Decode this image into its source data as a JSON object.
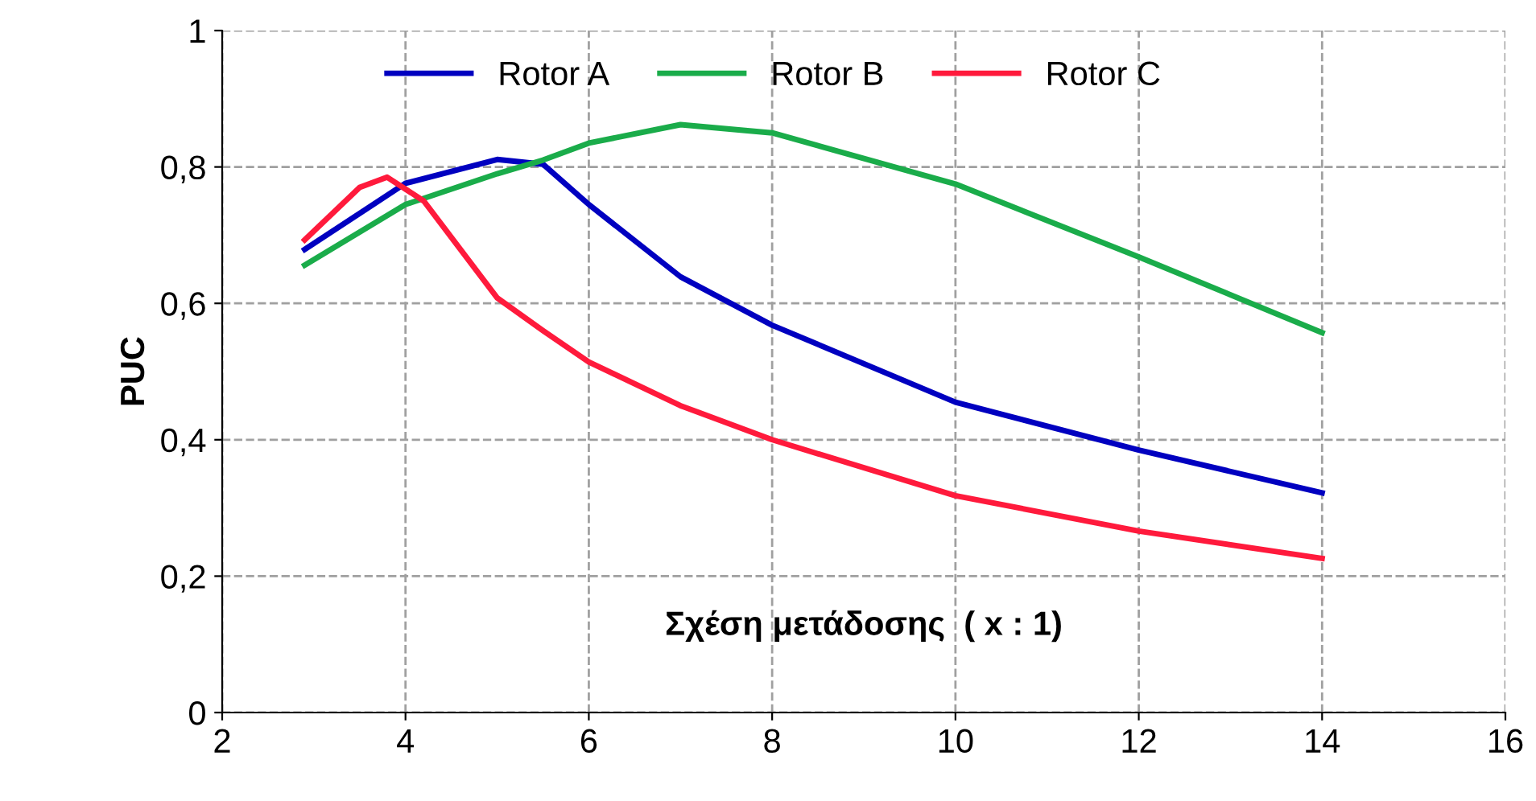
{
  "chart_data": {
    "type": "line",
    "ylabel": "PUC",
    "xlabel": "Σχέση μετάδοσης  ( x : 1)",
    "x": [
      2.9,
      4,
      5,
      5.5,
      6,
      7,
      8,
      10,
      12,
      14
    ],
    "series": [
      {
        "name": "Rotor A",
        "color": "#0000c0",
        "values": [
          0.679,
          0.776,
          0.811,
          0.804,
          0.745,
          0.639,
          0.568,
          0.455,
          0.385,
          0.322
        ]
      },
      {
        "name": "Rotor B",
        "color": "#1aac4a",
        "values": [
          0.656,
          0.745,
          0.79,
          0.81,
          0.835,
          0.862,
          0.85,
          0.775,
          0.668,
          0.557
        ]
      },
      {
        "name": "Rotor C",
        "color": "#ff1a3c",
        "x": [
          2.9,
          3.5,
          3.8,
          4.2,
          5,
          5.5,
          6,
          7,
          8,
          10,
          12,
          14
        ],
        "values": [
          0.693,
          0.77,
          0.785,
          0.75,
          0.608,
          0.56,
          0.514,
          0.45,
          0.4,
          0.318,
          0.266,
          0.226
        ]
      }
    ],
    "xlim": [
      2,
      16
    ],
    "xticks": [
      2,
      4,
      6,
      8,
      10,
      12,
      14,
      16
    ],
    "ylim": [
      0,
      1
    ],
    "yticks": [
      0,
      {
        "value": 0.2,
        "label": "0,2"
      },
      {
        "value": 0.4,
        "label": "0,4"
      },
      {
        "value": 0.6,
        "label": "0,6"
      },
      {
        "value": 0.8,
        "label": "0,8"
      },
      1
    ],
    "grid": true,
    "legend": "top",
    "marker": "none",
    "line_style": "solid"
  }
}
